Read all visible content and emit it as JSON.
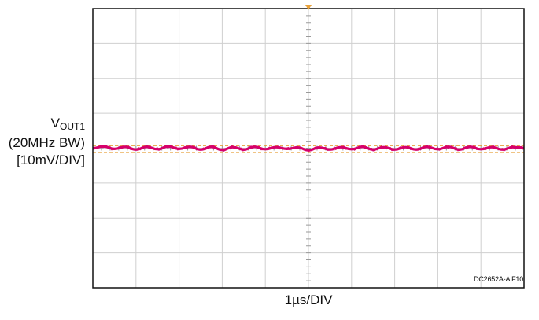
{
  "chart_data": {
    "type": "line",
    "title": "",
    "ylabel": {
      "main": "V",
      "sub": "OUT1",
      "line2": "(20MHz BW)",
      "line3": "[10mV/DIV]"
    },
    "xlabel": "1µs/DIV",
    "figure_id": "DC2652A-A F10",
    "grid": true,
    "x_divisions": 10,
    "y_divisions": 8,
    "x_units": "µs",
    "y_units": "mV",
    "xlim": [
      0,
      10
    ],
    "ylim": [
      -40,
      40
    ],
    "trigger_marker_x": 5,
    "cursor_levels_mV": [
      0.7,
      -1.2
    ],
    "series": [
      {
        "color": "#d6006b",
        "x": [
          0,
          0.25,
          0.5,
          0.75,
          1.0,
          1.25,
          1.5,
          1.75,
          2.0,
          2.25,
          2.5,
          2.75,
          3.0,
          3.25,
          3.5,
          3.75,
          4.0,
          4.25,
          4.5,
          4.75,
          5.0,
          5.25,
          5.5,
          5.75,
          6.0,
          6.25,
          6.5,
          6.75,
          7.0,
          7.25,
          7.5,
          7.75,
          8.0,
          8.25,
          8.5,
          8.75,
          9.0,
          9.25,
          9.5,
          9.75,
          10.0
        ],
        "values": [
          0.0,
          0.5,
          -0.2,
          0.4,
          -0.4,
          0.4,
          -0.3,
          0.5,
          -0.2,
          0.4,
          -0.4,
          0.4,
          -0.5,
          0.3,
          -0.4,
          0.4,
          -0.3,
          0.3,
          -0.2,
          0.2,
          -0.6,
          0.2,
          -0.4,
          0.3,
          -0.3,
          0.4,
          -0.4,
          0.3,
          -0.4,
          0.3,
          -0.4,
          0.4,
          -0.3,
          0.4,
          -0.4,
          0.4,
          -0.3,
          0.3,
          -0.4,
          0.3,
          0.1
        ]
      }
    ],
    "colors": {
      "grid": "#cfcfcf",
      "frame": "#111111",
      "cursor": "#e8a13a",
      "marker": "#e8a13a"
    }
  }
}
